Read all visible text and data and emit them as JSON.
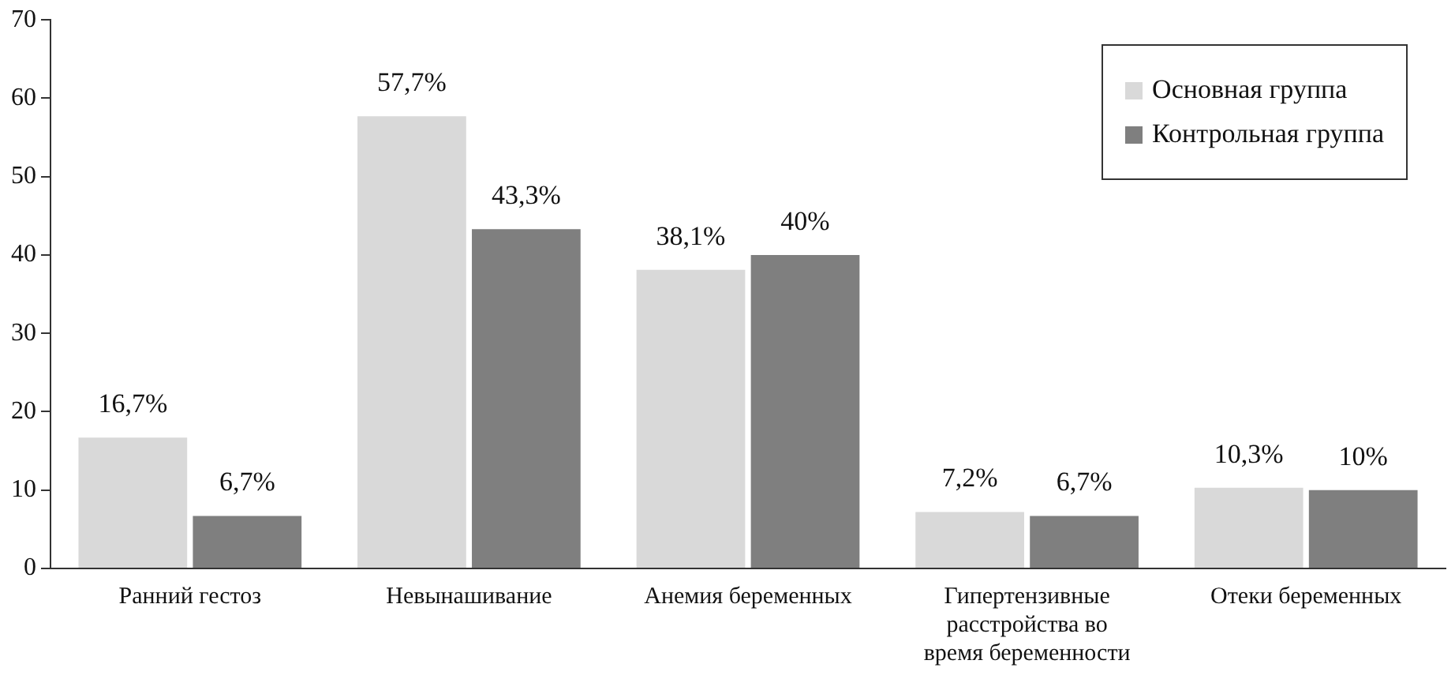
{
  "chart_data": {
    "type": "bar",
    "categories": [
      "Ранний гестоз",
      "Невынашивание",
      "Анемия беременных",
      "Гипертензивные расстройства во время беременности",
      "Отеки беременных"
    ],
    "series": [
      {
        "name": "Основная группа",
        "color": "#d9d9d9",
        "values": [
          16.7,
          57.7,
          38.1,
          7.2,
          10.3
        ],
        "value_labels": [
          "16,7%",
          "57,7%",
          "38,1%",
          "7,2%",
          "10,3%"
        ]
      },
      {
        "name": "Контрольная группа",
        "color": "#7f7f7f",
        "values": [
          6.7,
          43.3,
          40,
          6.7,
          10
        ],
        "value_labels": [
          "6,7%",
          "43,3%",
          "40%",
          "6,7%",
          "10%"
        ]
      }
    ],
    "ylim": [
      0,
      70
    ],
    "yticks": [
      0,
      10,
      20,
      30,
      40,
      50,
      60,
      70
    ],
    "grid": false,
    "legend": "top right"
  }
}
